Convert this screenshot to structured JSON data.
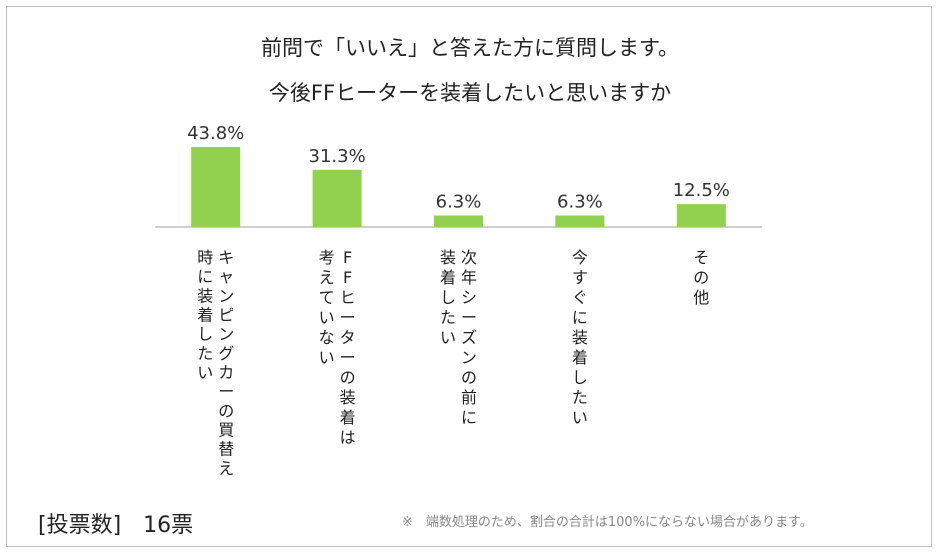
{
  "chart_data": {
    "type": "bar",
    "title_line1": "前問で「いいえ」と答えた方に質問します。",
    "title_line2": "今後FFヒーターを装着したいと思いますか",
    "categories": [
      [
        "キャンピングカーの買替え",
        "時に装着したい"
      ],
      [
        "FFヒーターの装着は",
        "考えていない"
      ],
      [
        "次年シーズンの前に",
        "装着したい"
      ],
      [
        "今すぐに装着したい"
      ],
      [
        "その他"
      ]
    ],
    "values": [
      43.8,
      31.3,
      6.3,
      6.3,
      12.5
    ],
    "value_labels": [
      "43.8%",
      "31.3%",
      "6.3%",
      "6.3%",
      "12.5%"
    ],
    "ylim": [
      0,
      50
    ],
    "bar_color": "#92d050",
    "axis_color": "#bfbfbf",
    "legend": "none",
    "grid": false
  },
  "footer": {
    "votes": "[投票数]　16票",
    "note": "※　端数処理のため、割合の合計は100%にならない場合があります。"
  }
}
